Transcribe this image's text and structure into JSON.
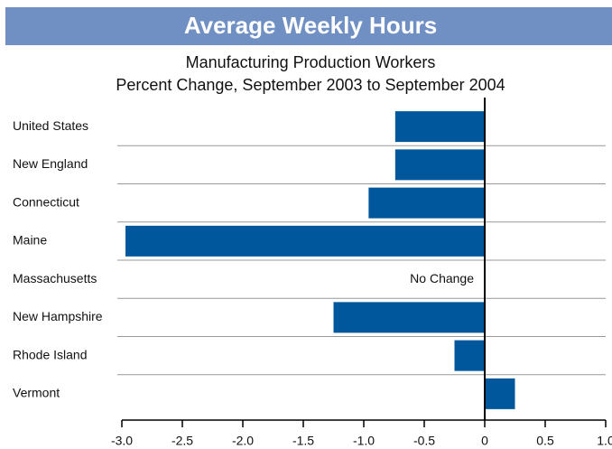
{
  "chart_data": {
    "type": "barh",
    "title": "Average Weekly Hours",
    "subtitle": [
      "Manufacturing Production Workers",
      "Percent Change, September 2003 to September 2004"
    ],
    "categories": [
      "United States",
      "New England",
      "Connecticut",
      "Maine",
      "Massachusetts",
      "New Hampshire",
      "Rhode Island",
      "Vermont"
    ],
    "values": [
      -0.74,
      -0.74,
      -0.96,
      -2.97,
      0,
      -1.25,
      -0.25,
      0.25
    ],
    "color": "#00579b",
    "annotation": "No Change",
    "xlim": [
      -3,
      1
    ],
    "xticks": [
      {
        "value": -3,
        "label": "-3.0"
      },
      -2.5,
      {
        "value": -2,
        "label": "-2.0"
      },
      -1.5,
      {
        "value": -1,
        "label": "-1.0"
      },
      -0.5,
      0,
      0.5,
      {
        "value": 1,
        "label": "1.0"
      }
    ]
  }
}
